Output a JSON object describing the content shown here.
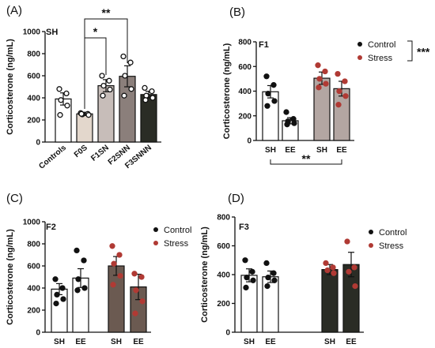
{
  "chart_data": [
    {
      "panel": "(A)",
      "type": "bar",
      "title": "SH",
      "ylabel": "Corticosterone (ng/mL)",
      "ylim": [
        0,
        1000
      ],
      "yticks": [
        "0",
        "200",
        "400",
        "600",
        "800",
        "1000"
      ],
      "categories": [
        "Controls",
        "F0S",
        "F1SN",
        "F2SNN",
        "F3SNNN"
      ],
      "category_label_rotation": "angled",
      "values": [
        390,
        255,
        510,
        595,
        430
      ],
      "errors": [
        55,
        15,
        55,
        95,
        30
      ],
      "bar_colors": [
        "#ffffff",
        "#e3d7cc",
        "#c7bdb9",
        "#8b7f7b",
        "#2a2c25"
      ],
      "points": [
        [
          480,
          440,
          380,
          330,
          245
        ],
        [
          262,
          255,
          250,
          245,
          255
        ],
        [
          600,
          555,
          510,
          475,
          420
        ],
        [
          775,
          720,
          600,
          480,
          420
        ],
        [
          490,
          460,
          420,
          400,
          380
        ]
      ],
      "point_style": "open",
      "significance": [
        {
          "from": 1,
          "to": 2,
          "label": "*"
        },
        {
          "from": 1,
          "to": 3,
          "label": "**"
        }
      ]
    },
    {
      "panel": "(B)",
      "type": "bar",
      "title": "F1",
      "ylabel": "Corticosterone (ng/mL)",
      "ylim": [
        0,
        800
      ],
      "yticks": [
        "0",
        "200",
        "400",
        "600",
        "800"
      ],
      "categories": [
        "SH",
        "EE",
        "SH",
        "EE"
      ],
      "groups": [
        "Control",
        "Control",
        "Stress",
        "Stress"
      ],
      "values": [
        395,
        160,
        505,
        420
      ],
      "errors": [
        50,
        25,
        50,
        60
      ],
      "bar_colors": [
        "#ffffff",
        "#ffffff",
        "#b3a6a2",
        "#b3a6a2"
      ],
      "points": [
        [
          520,
          450,
          380,
          320,
          280
        ],
        [
          230,
          175,
          155,
          140,
          130
        ],
        [
          610,
          560,
          500,
          460,
          430
        ],
        [
          540,
          480,
          400,
          360,
          290
        ]
      ],
      "point_colors": [
        "#111111",
        "#111111",
        "#b03a34",
        "#b03a34"
      ],
      "legend": [
        {
          "label": "Control",
          "color": "#111111"
        },
        {
          "label": "Stress",
          "color": "#b03a34"
        }
      ],
      "legend_position": "top-right",
      "significance": [
        {
          "between": "legend",
          "label": "***"
        },
        {
          "from": 0,
          "to": 3,
          "label": "**"
        }
      ]
    },
    {
      "panel": "(C)",
      "type": "bar",
      "title": "F2",
      "ylabel": "Corticosterone (ng/mL)",
      "ylim": [
        0,
        1000
      ],
      "yticks": [
        "0",
        "200",
        "400",
        "600",
        "800",
        "1000"
      ],
      "categories": [
        "SH",
        "EE",
        "SH",
        "EE"
      ],
      "groups": [
        "Control",
        "Control",
        "Stress",
        "Stress"
      ],
      "values": [
        390,
        490,
        600,
        410
      ],
      "errors": [
        50,
        85,
        85,
        115
      ],
      "bar_colors": [
        "#ffffff",
        "#ffffff",
        "#6b5a51",
        "#6b5a51"
      ],
      "points": [
        [
          480,
          400,
          340,
          300,
          260
        ],
        [
          740,
          650,
          480,
          400,
          380
        ],
        [
          780,
          700,
          620,
          510,
          430
        ],
        [
          530,
          500,
          380,
          280,
          170
        ]
      ],
      "point_colors": [
        "#111111",
        "#111111",
        "#b03a34",
        "#b03a34"
      ],
      "legend": [
        {
          "label": "Control",
          "color": "#111111"
        },
        {
          "label": "Stress",
          "color": "#b03a34"
        }
      ],
      "legend_position": "top-right"
    },
    {
      "panel": "(D)",
      "type": "bar",
      "title": "F3",
      "ylabel": "Corticosterone (ng/mL)",
      "ylim": [
        0,
        800
      ],
      "yticks": [
        "0",
        "200",
        "400",
        "600",
        "800"
      ],
      "categories": [
        "SH",
        "EE",
        "SH",
        "EE"
      ],
      "groups": [
        "Control",
        "Control",
        "Stress",
        "Stress"
      ],
      "values": [
        395,
        385,
        435,
        470
      ],
      "errors": [
        45,
        40,
        35,
        85
      ],
      "bar_colors": [
        "#ffffff",
        "#ffffff",
        "#2a2c25",
        "#2a2c25"
      ],
      "points": [
        [
          500,
          420,
          380,
          360,
          310
        ],
        [
          480,
          410,
          380,
          360,
          320
        ],
        [
          480,
          450,
          430,
          410
        ],
        [
          630,
          450,
          420,
          320
        ]
      ],
      "point_colors": [
        "#111111",
        "#111111",
        "#b03a34",
        "#b03a34"
      ],
      "legend": [
        {
          "label": "Control",
          "color": "#111111"
        },
        {
          "label": "Stress",
          "color": "#b03a34"
        }
      ],
      "legend_position": "top-right"
    }
  ]
}
